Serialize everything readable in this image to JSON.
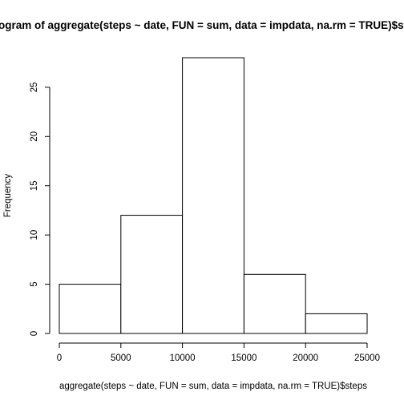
{
  "chart_data": {
    "type": "histogram",
    "title": "Histogram of aggregate(steps ~ date, FUN = sum, data = impdata, na.rm = TRUE)$steps",
    "xlabel": "aggregate(steps ~ date, FUN = sum, data = impdata, na.rm = TRUE)$steps",
    "ylabel": "Frequency",
    "bins": [
      {
        "from": 0,
        "to": 5000,
        "count": 5
      },
      {
        "from": 5000,
        "to": 10000,
        "count": 12
      },
      {
        "from": 10000,
        "to": 15000,
        "count": 28
      },
      {
        "from": 15000,
        "to": 20000,
        "count": 6
      },
      {
        "from": 20000,
        "to": 25000,
        "count": 2
      }
    ],
    "xlim": [
      0,
      25000
    ],
    "ylim": [
      0,
      28
    ],
    "xticks": [
      0,
      5000,
      10000,
      15000,
      20000,
      25000
    ],
    "xtick_labels": [
      "0",
      "5000",
      "10000",
      "15000",
      "20000",
      "25000"
    ],
    "yticks": [
      0,
      5,
      10,
      15,
      20,
      25
    ],
    "ytick_labels": [
      "0",
      "5",
      "10",
      "15",
      "20",
      "25"
    ],
    "grid": false,
    "legend": "none"
  }
}
